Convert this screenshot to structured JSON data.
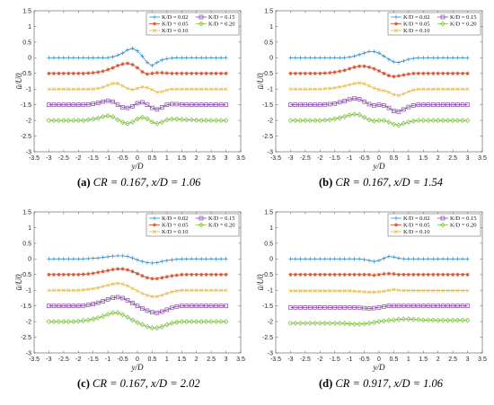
{
  "figure": {
    "captions": [
      {
        "tag": "(a)",
        "text": "CR = 0.167, x/D = 1.06"
      },
      {
        "tag": "(b)",
        "text": "CR = 0.167, x/D = 1.54"
      },
      {
        "tag": "(c)",
        "text": "CR = 0.167, x/D = 2.02"
      },
      {
        "tag": "(d)",
        "text": "CR = 0.917, x/D = 1.06"
      }
    ]
  },
  "colors": {
    "k002": "#2f8fd0",
    "k005": "#d4502a",
    "k010": "#e5b83a",
    "k015": "#8a47a8",
    "k020": "#7bbf3a"
  },
  "chart_data": [
    {
      "type": "line",
      "title": "",
      "xlabel": "y/D",
      "ylabel": "ū/U0",
      "xlim": [
        -3.5,
        3.5
      ],
      "ylim": [
        -3,
        1.5
      ],
      "xticks": [
        "-3.5",
        "-3",
        "-2.5",
        "-2",
        "-1.5",
        "-1",
        "-0.5",
        "0",
        "0.5",
        "1",
        "1.5",
        "2",
        "2.5",
        "3",
        "3.5"
      ],
      "yticks": [
        "1.5",
        "1",
        "0.5",
        "0",
        "-0.5",
        "-1",
        "-1.5",
        "-2",
        "-2.5",
        "-3"
      ],
      "legend_position": "top-right",
      "series": [
        {
          "name": "K/D = 0.02",
          "marker": "plus",
          "y": [
            0,
            0,
            0,
            0,
            0,
            0,
            0,
            0,
            0,
            0,
            0,
            0,
            0,
            0.03,
            0.08,
            0.15,
            0.25,
            0.3,
            0.22,
            0.05,
            -0.15,
            -0.25,
            -0.15,
            -0.07,
            -0.03,
            -0.01,
            0,
            0,
            0,
            0,
            0,
            0,
            0,
            0,
            0,
            0,
            0
          ]
        },
        {
          "name": "K/D = 0.05",
          "marker": "star",
          "y": [
            -0.5,
            -0.5,
            -0.5,
            -0.5,
            -0.5,
            -0.5,
            -0.5,
            -0.5,
            -0.49,
            -0.48,
            -0.46,
            -0.43,
            -0.38,
            -0.32,
            -0.25,
            -0.2,
            -0.18,
            -0.22,
            -0.32,
            -0.45,
            -0.52,
            -0.5,
            -0.48,
            -0.48,
            -0.49,
            -0.5,
            -0.5,
            -0.5,
            -0.5,
            -0.5,
            -0.5,
            -0.5,
            -0.5,
            -0.5,
            -0.5,
            -0.5,
            -0.5
          ]
        },
        {
          "name": "K/D = 0.10",
          "marker": "cross",
          "y": [
            -1,
            -1,
            -1,
            -1,
            -1,
            -1,
            -1,
            -1,
            -1,
            -1,
            -0.98,
            -0.94,
            -0.88,
            -0.82,
            -0.82,
            -0.9,
            -0.98,
            -1.02,
            -0.98,
            -0.93,
            -0.95,
            -1.02,
            -1.1,
            -1.08,
            -1.03,
            -1,
            -1,
            -1,
            -1,
            -1,
            -1,
            -1,
            -1,
            -1,
            -1,
            -1,
            -1
          ]
        },
        {
          "name": "K/D = 0.15",
          "marker": "square",
          "y": [
            -1.5,
            -1.5,
            -1.5,
            -1.5,
            -1.5,
            -1.5,
            -1.5,
            -1.5,
            -1.49,
            -1.47,
            -1.44,
            -1.4,
            -1.37,
            -1.4,
            -1.5,
            -1.58,
            -1.6,
            -1.55,
            -1.45,
            -1.42,
            -1.5,
            -1.6,
            -1.65,
            -1.58,
            -1.5,
            -1.48,
            -1.48,
            -1.49,
            -1.5,
            -1.5,
            -1.5,
            -1.5,
            -1.5,
            -1.5,
            -1.5,
            -1.5,
            -1.5
          ]
        },
        {
          "name": "K/D = 0.20",
          "marker": "diamond",
          "y": [
            -2,
            -2,
            -2,
            -2,
            -2,
            -2,
            -2,
            -2,
            -1.98,
            -1.96,
            -1.93,
            -1.88,
            -1.85,
            -1.88,
            -1.98,
            -2.06,
            -2.1,
            -2.05,
            -1.95,
            -1.9,
            -1.95,
            -2.05,
            -2.1,
            -2.05,
            -1.98,
            -1.96,
            -1.96,
            -1.97,
            -1.98,
            -1.98,
            -1.99,
            -2,
            -2,
            -2,
            -2,
            -2,
            -2
          ]
        }
      ]
    },
    {
      "type": "line",
      "title": "",
      "xlabel": "y/D",
      "ylabel": "ū/U0",
      "xlim": [
        -3.5,
        3.5
      ],
      "ylim": [
        -3,
        1.5
      ],
      "xticks": [
        "-3.5",
        "-3",
        "-2.5",
        "-2",
        "-1.5",
        "-1",
        "-0.5",
        "0",
        "0.5",
        "1",
        "1.5",
        "2",
        "2.5",
        "3",
        "3.5"
      ],
      "yticks": [
        "1.5",
        "1",
        "0.5",
        "0",
        "-0.5",
        "-1",
        "-1.5",
        "-2",
        "-2.5",
        "-3"
      ],
      "legend_position": "top-right",
      "series": [
        {
          "name": "K/D = 0.02",
          "marker": "plus",
          "y": [
            0,
            0,
            0,
            0,
            0,
            0,
            0,
            0,
            0,
            0,
            0,
            0,
            0.02,
            0.05,
            0.1,
            0.15,
            0.2,
            0.2,
            0.15,
            0.05,
            -0.05,
            -0.13,
            -0.15,
            -0.1,
            -0.05,
            -0.02,
            0,
            0,
            0,
            0,
            0,
            0,
            0,
            0,
            0,
            0,
            0
          ]
        },
        {
          "name": "K/D = 0.05",
          "marker": "star",
          "y": [
            -0.5,
            -0.5,
            -0.5,
            -0.5,
            -0.5,
            -0.5,
            -0.5,
            -0.49,
            -0.48,
            -0.46,
            -0.43,
            -0.4,
            -0.35,
            -0.3,
            -0.27,
            -0.27,
            -0.3,
            -0.35,
            -0.42,
            -0.5,
            -0.57,
            -0.6,
            -0.58,
            -0.55,
            -0.52,
            -0.5,
            -0.5,
            -0.5,
            -0.5,
            -0.5,
            -0.5,
            -0.5,
            -0.5,
            -0.5,
            -0.5,
            -0.5,
            -0.5
          ]
        },
        {
          "name": "K/D = 0.10",
          "marker": "cross",
          "y": [
            -1,
            -1,
            -1,
            -1,
            -1,
            -1,
            -1,
            -0.99,
            -0.98,
            -0.96,
            -0.93,
            -0.9,
            -0.86,
            -0.82,
            -0.8,
            -0.83,
            -0.9,
            -0.97,
            -1.02,
            -1.05,
            -1.1,
            -1.18,
            -1.2,
            -1.15,
            -1.08,
            -1.03,
            -1,
            -1,
            -1,
            -1,
            -1,
            -1,
            -1,
            -1,
            -1,
            -1,
            -1
          ]
        },
        {
          "name": "K/D = 0.15",
          "marker": "square",
          "y": [
            -1.5,
            -1.5,
            -1.5,
            -1.5,
            -1.5,
            -1.5,
            -1.5,
            -1.49,
            -1.48,
            -1.46,
            -1.42,
            -1.38,
            -1.33,
            -1.3,
            -1.32,
            -1.4,
            -1.48,
            -1.52,
            -1.5,
            -1.52,
            -1.6,
            -1.7,
            -1.72,
            -1.65,
            -1.57,
            -1.52,
            -1.5,
            -1.5,
            -1.5,
            -1.5,
            -1.5,
            -1.5,
            -1.5,
            -1.5,
            -1.5,
            -1.5,
            -1.5
          ]
        },
        {
          "name": "K/D = 0.20",
          "marker": "diamond",
          "y": [
            -2,
            -2,
            -2,
            -2,
            -2,
            -2,
            -2,
            -1.99,
            -1.98,
            -1.95,
            -1.92,
            -1.88,
            -1.83,
            -1.8,
            -1.82,
            -1.9,
            -1.98,
            -2.02,
            -2,
            -2,
            -2.05,
            -2.12,
            -2.15,
            -2.1,
            -2.05,
            -2.02,
            -2,
            -2,
            -2,
            -2,
            -2,
            -2,
            -2,
            -2,
            -2,
            -2,
            -2
          ]
        }
      ]
    },
    {
      "type": "line",
      "title": "",
      "xlabel": "y/D",
      "ylabel": "ū/U0",
      "xlim": [
        -3.5,
        3.5
      ],
      "ylim": [
        -3,
        1.5
      ],
      "xticks": [
        "-3.5",
        "-3",
        "-2.5",
        "-2",
        "-1.5",
        "-1",
        "-0.5",
        "0",
        "0.5",
        "1",
        "1.5",
        "2",
        "2.5",
        "3",
        "3.5"
      ],
      "yticks": [
        "1.5",
        "1",
        "0.5",
        "0",
        "-0.5",
        "-1",
        "-1.5",
        "-2",
        "-2.5",
        "-3"
      ],
      "legend_position": "top-right",
      "series": [
        {
          "name": "K/D = 0.02",
          "marker": "plus",
          "y": [
            0,
            0,
            0,
            0,
            0,
            0,
            0,
            0,
            0.01,
            0.02,
            0.03,
            0.05,
            0.07,
            0.09,
            0.1,
            0.1,
            0.08,
            0.03,
            -0.03,
            -0.08,
            -0.12,
            -0.13,
            -0.12,
            -0.08,
            -0.05,
            -0.03,
            -0.01,
            0,
            0,
            0,
            0,
            0,
            0,
            0,
            0,
            0,
            0
          ]
        },
        {
          "name": "K/D = 0.05",
          "marker": "star",
          "y": [
            -0.5,
            -0.5,
            -0.5,
            -0.5,
            -0.5,
            -0.5,
            -0.5,
            -0.49,
            -0.48,
            -0.46,
            -0.43,
            -0.4,
            -0.37,
            -0.34,
            -0.32,
            -0.32,
            -0.35,
            -0.4,
            -0.47,
            -0.54,
            -0.6,
            -0.63,
            -0.63,
            -0.6,
            -0.57,
            -0.54,
            -0.52,
            -0.5,
            -0.5,
            -0.5,
            -0.5,
            -0.5,
            -0.5,
            -0.5,
            -0.5,
            -0.5,
            -0.5
          ]
        },
        {
          "name": "K/D = 0.10",
          "marker": "cross",
          "y": [
            -1,
            -1,
            -1,
            -1,
            -1,
            -1,
            -1,
            -0.99,
            -0.97,
            -0.95,
            -0.92,
            -0.88,
            -0.84,
            -0.8,
            -0.78,
            -0.8,
            -0.86,
            -0.94,
            -1.02,
            -1.1,
            -1.16,
            -1.2,
            -1.2,
            -1.16,
            -1.1,
            -1.05,
            -1.02,
            -1,
            -1,
            -1,
            -1,
            -1,
            -1,
            -1,
            -1,
            -1,
            -1
          ]
        },
        {
          "name": "K/D = 0.15",
          "marker": "square",
          "y": [
            -1.5,
            -1.5,
            -1.5,
            -1.5,
            -1.5,
            -1.5,
            -1.5,
            -1.49,
            -1.47,
            -1.44,
            -1.4,
            -1.35,
            -1.29,
            -1.24,
            -1.22,
            -1.25,
            -1.32,
            -1.41,
            -1.5,
            -1.58,
            -1.65,
            -1.7,
            -1.72,
            -1.68,
            -1.62,
            -1.56,
            -1.52,
            -1.5,
            -1.5,
            -1.5,
            -1.5,
            -1.5,
            -1.5,
            -1.5,
            -1.5,
            -1.5,
            -1.5
          ]
        },
        {
          "name": "K/D = 0.20",
          "marker": "diamond",
          "y": [
            -2,
            -2,
            -2,
            -2,
            -2,
            -2,
            -1.99,
            -1.97,
            -1.95,
            -1.92,
            -1.88,
            -1.83,
            -1.77,
            -1.72,
            -1.72,
            -1.78,
            -1.86,
            -1.95,
            -2.03,
            -2.1,
            -2.16,
            -2.2,
            -2.2,
            -2.16,
            -2.1,
            -2.05,
            -2.02,
            -2,
            -2,
            -2,
            -2,
            -2,
            -2,
            -2,
            -2,
            -2,
            -2
          ]
        }
      ]
    },
    {
      "type": "line",
      "title": "",
      "xlabel": "y/D",
      "ylabel": "ū/U0",
      "xlim": [
        -3.5,
        3.5
      ],
      "ylim": [
        -3,
        1.5
      ],
      "xticks": [
        "-3.5",
        "-3",
        "-2.5",
        "-2",
        "-1.5",
        "-1",
        "-0.5",
        "0",
        "0.5",
        "1",
        "1.5",
        "2",
        "2.5",
        "3",
        "3.5"
      ],
      "yticks": [
        "1.5",
        "1",
        "0.5",
        "0",
        "-0.5",
        "-1",
        "-1.5",
        "-2",
        "-2.5",
        "-3"
      ],
      "legend_position": "top-right",
      "series": [
        {
          "name": "K/D = 0.02",
          "marker": "plus",
          "y": [
            0,
            0,
            0,
            0,
            0,
            0,
            0,
            0,
            0,
            0,
            0,
            0,
            0,
            0,
            0,
            -0.02,
            -0.05,
            -0.08,
            -0.05,
            0.02,
            0.08,
            0.06,
            0.02,
            0,
            0,
            0,
            0,
            0,
            0,
            0,
            0,
            0,
            0,
            0,
            0,
            0,
            0
          ]
        },
        {
          "name": "K/D = 0.05",
          "marker": "star",
          "y": [
            -0.5,
            -0.5,
            -0.5,
            -0.5,
            -0.5,
            -0.5,
            -0.5,
            -0.5,
            -0.5,
            -0.5,
            -0.5,
            -0.5,
            -0.5,
            -0.5,
            -0.5,
            -0.5,
            -0.5,
            -0.52,
            -0.5,
            -0.48,
            -0.47,
            -0.48,
            -0.5,
            -0.5,
            -0.5,
            -0.5,
            -0.5,
            -0.5,
            -0.5,
            -0.5,
            -0.5,
            -0.5,
            -0.5,
            -0.5,
            -0.5,
            -0.5,
            -0.5
          ]
        },
        {
          "name": "K/D = 0.10",
          "marker": "cross",
          "y": [
            -1.02,
            -1.02,
            -1.02,
            -1.02,
            -1.02,
            -1.02,
            -1.02,
            -1.02,
            -1.02,
            -1.02,
            -1.02,
            -1.02,
            -1.02,
            -1.03,
            -1.04,
            -1.05,
            -1.06,
            -1.06,
            -1.05,
            -1.03,
            -1,
            -0.98,
            -1,
            -1.01,
            -1.01,
            -1.01,
            -1.01,
            -1.01,
            -1.01,
            -1.01,
            -1.01,
            -1.01,
            -1.01,
            -1.01,
            -1.01,
            -1.01,
            -1.01
          ]
        },
        {
          "name": "K/D = 0.15",
          "marker": "square",
          "y": [
            -1.55,
            -1.55,
            -1.55,
            -1.55,
            -1.55,
            -1.55,
            -1.55,
            -1.55,
            -1.55,
            -1.55,
            -1.55,
            -1.55,
            -1.55,
            -1.55,
            -1.56,
            -1.57,
            -1.58,
            -1.57,
            -1.55,
            -1.52,
            -1.5,
            -1.5,
            -1.5,
            -1.5,
            -1.5,
            -1.5,
            -1.5,
            -1.5,
            -1.5,
            -1.5,
            -1.5,
            -1.5,
            -1.5,
            -1.5,
            -1.5,
            -1.5,
            -1.5
          ]
        },
        {
          "name": "K/D = 0.20",
          "marker": "diamond",
          "y": [
            -2.05,
            -2.05,
            -2.05,
            -2.05,
            -2.05,
            -2.05,
            -2.05,
            -2.05,
            -2.05,
            -2.05,
            -2.05,
            -2.06,
            -2.07,
            -2.08,
            -2.08,
            -2.07,
            -2.05,
            -2.03,
            -2,
            -1.98,
            -1.96,
            -1.95,
            -1.93,
            -1.92,
            -1.92,
            -1.93,
            -1.94,
            -1.95,
            -1.95,
            -1.95,
            -1.96,
            -1.96,
            -1.96,
            -1.96,
            -1.96,
            -1.96,
            -1.96
          ]
        }
      ]
    }
  ]
}
